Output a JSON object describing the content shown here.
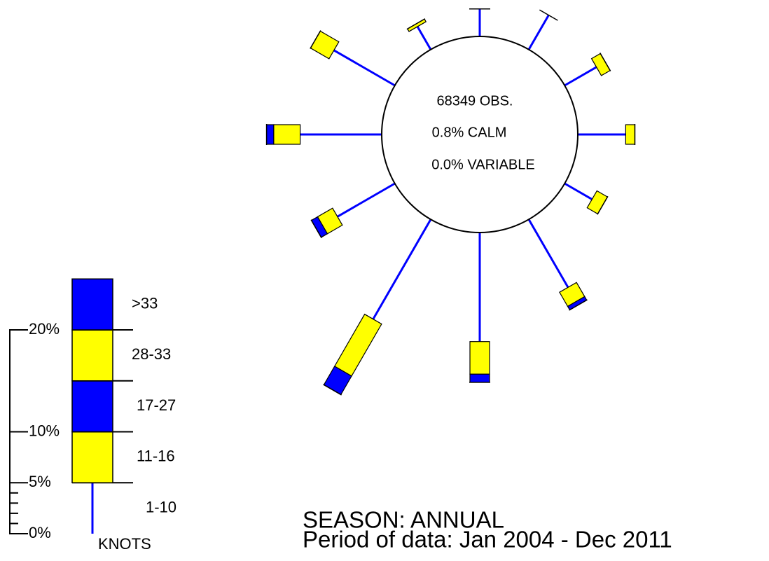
{
  "chart_data": {
    "type": "windrose",
    "annotations": [
      "68349 OBS.",
      "0.8% CALM",
      "0.0% VARIABLE"
    ],
    "season": "SEASON: ANNUAL",
    "period": "Period of data: Jan 2004 - Dec 2011",
    "units": "KNOTS",
    "series": [
      {
        "name": "1-10",
        "color": "#0000ff",
        "values": [
          2.7,
          3.9,
          3.6,
          4.7,
          3.1,
          7.7,
          10.7,
          11.3,
          6.5,
          8.0,
          6.9,
          2.6
        ]
      },
      {
        "name": "11-16",
        "color": "#ffff00",
        "values": [
          0,
          0,
          1.0,
          0.9,
          1.2,
          1.6,
          3.2,
          5.9,
          1.7,
          2.6,
          2.1,
          0.3
        ]
      },
      {
        "name": "17-27",
        "color": "#0000ff",
        "values": [
          0,
          0,
          0,
          0,
          0,
          0.4,
          0.8,
          2.1,
          0.7,
          0.7,
          0,
          0
        ]
      },
      {
        "name": "28-33",
        "color": "#ffff00",
        "values": [
          0,
          0,
          0,
          0,
          0,
          0,
          0,
          0,
          0,
          0,
          0,
          0
        ]
      },
      {
        "name": ">33",
        "color": "#0000ff",
        "values": [
          0,
          0,
          0,
          0,
          0,
          0,
          0,
          0,
          0,
          0,
          0,
          0
        ]
      }
    ],
    "legend_values": [
      5,
      5,
      5,
      5,
      5
    ],
    "ylim": [
      0,
      20
    ],
    "yticks": [
      {
        "value": 0,
        "label": "0%"
      },
      {
        "value": 5,
        "label": "5%"
      },
      {
        "value": 10,
        "label": "10%"
      },
      {
        "value": 20,
        "label": "20%"
      }
    ],
    "minor_ticks": [
      1,
      2,
      3,
      4
    ]
  }
}
